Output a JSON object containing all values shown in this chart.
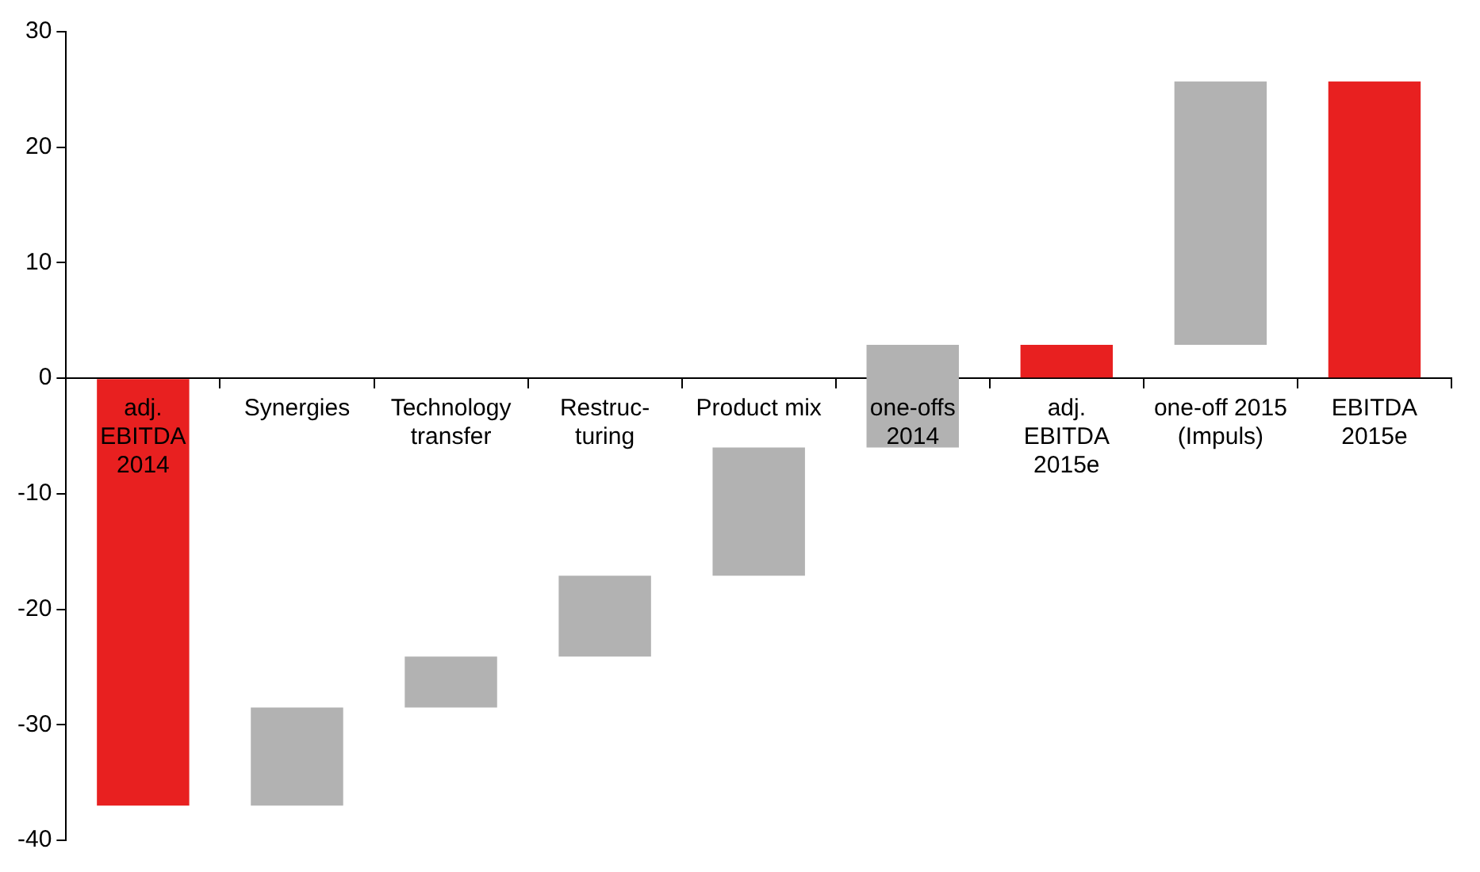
{
  "chart_data": {
    "type": "bar",
    "categories": [
      "adj.\nEBITDA\n2014",
      "Synergies",
      "Technology\ntransfer",
      "Restruc-\nturing",
      "Product mix",
      "one-offs\n2014",
      "adj.\nEBITDA\n2015e",
      "one-off 2015\n(Impuls)",
      "EBITDA\n2015e"
    ],
    "values": [
      -37,
      8.5,
      4.4,
      7,
      11.1,
      8.9,
      2.9,
      22.8,
      25.7
    ],
    "base": [
      0,
      -37,
      -28.5,
      -24.1,
      -17.1,
      -6,
      0,
      2.9,
      0
    ],
    "colors": [
      "#e82020",
      "#b2b2b2",
      "#b2b2b2",
      "#b2b2b2",
      "#b2b2b2",
      "#b2b2b2",
      "#e82020",
      "#b2b2b2",
      "#e82020"
    ],
    "ylim": [
      -40,
      30
    ],
    "yticks": [
      -40,
      -30,
      -20,
      -10,
      0,
      10,
      20,
      30
    ],
    "grid": false,
    "legend": false
  }
}
